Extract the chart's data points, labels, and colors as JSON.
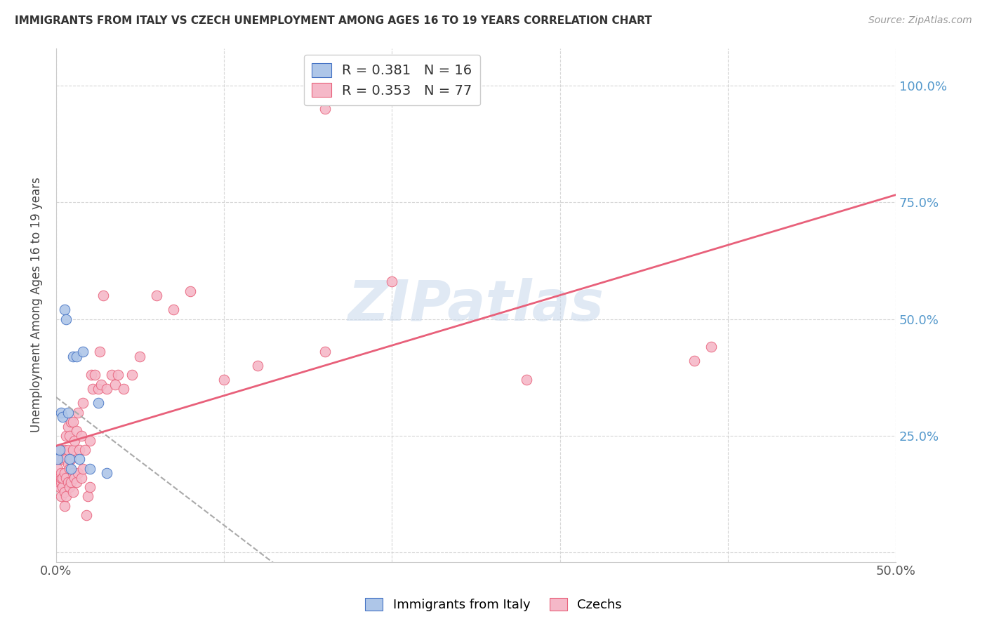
{
  "title": "IMMIGRANTS FROM ITALY VS CZECH UNEMPLOYMENT AMONG AGES 16 TO 19 YEARS CORRELATION CHART",
  "source": "Source: ZipAtlas.com",
  "ylabel": "Unemployment Among Ages 16 to 19 years",
  "xlim": [
    0.0,
    0.5
  ],
  "ylim": [
    -0.02,
    1.08
  ],
  "italy_color": "#aec6e8",
  "czech_color": "#f5b8c8",
  "italy_line_color": "#4472c4",
  "czech_line_color": "#e8607a",
  "italy_R": 0.381,
  "italy_N": 16,
  "czech_R": 0.353,
  "czech_N": 77,
  "watermark": "ZIPatlas",
  "italy_scatter_x": [
    0.001,
    0.002,
    0.003,
    0.004,
    0.005,
    0.006,
    0.007,
    0.008,
    0.009,
    0.01,
    0.012,
    0.014,
    0.016,
    0.02,
    0.025,
    0.03
  ],
  "italy_scatter_y": [
    0.2,
    0.22,
    0.3,
    0.29,
    0.52,
    0.5,
    0.3,
    0.2,
    0.18,
    0.42,
    0.42,
    0.2,
    0.43,
    0.18,
    0.32,
    0.17
  ],
  "czech_scatter_x": [
    0.001,
    0.001,
    0.001,
    0.002,
    0.002,
    0.002,
    0.003,
    0.003,
    0.003,
    0.003,
    0.003,
    0.004,
    0.004,
    0.004,
    0.005,
    0.005,
    0.005,
    0.005,
    0.006,
    0.006,
    0.006,
    0.006,
    0.007,
    0.007,
    0.007,
    0.007,
    0.008,
    0.008,
    0.008,
    0.009,
    0.009,
    0.009,
    0.01,
    0.01,
    0.01,
    0.01,
    0.011,
    0.011,
    0.012,
    0.012,
    0.013,
    0.013,
    0.014,
    0.015,
    0.015,
    0.016,
    0.016,
    0.017,
    0.018,
    0.019,
    0.02,
    0.02,
    0.021,
    0.022,
    0.023,
    0.025,
    0.026,
    0.027,
    0.028,
    0.03,
    0.033,
    0.035,
    0.037,
    0.04,
    0.045,
    0.05,
    0.06,
    0.07,
    0.08,
    0.1,
    0.12,
    0.16,
    0.2,
    0.28,
    0.38,
    0.39,
    0.16
  ],
  "czech_scatter_y": [
    0.15,
    0.16,
    0.18,
    0.14,
    0.15,
    0.2,
    0.12,
    0.15,
    0.16,
    0.17,
    0.22,
    0.14,
    0.16,
    0.2,
    0.1,
    0.13,
    0.17,
    0.22,
    0.12,
    0.16,
    0.2,
    0.25,
    0.15,
    0.19,
    0.22,
    0.27,
    0.14,
    0.18,
    0.25,
    0.15,
    0.2,
    0.28,
    0.13,
    0.17,
    0.22,
    0.28,
    0.16,
    0.24,
    0.15,
    0.26,
    0.17,
    0.3,
    0.22,
    0.16,
    0.25,
    0.18,
    0.32,
    0.22,
    0.08,
    0.12,
    0.14,
    0.24,
    0.38,
    0.35,
    0.38,
    0.35,
    0.43,
    0.36,
    0.55,
    0.35,
    0.38,
    0.36,
    0.38,
    0.35,
    0.38,
    0.42,
    0.55,
    0.52,
    0.56,
    0.37,
    0.4,
    0.43,
    0.58,
    0.37,
    0.41,
    0.44,
    0.95
  ]
}
